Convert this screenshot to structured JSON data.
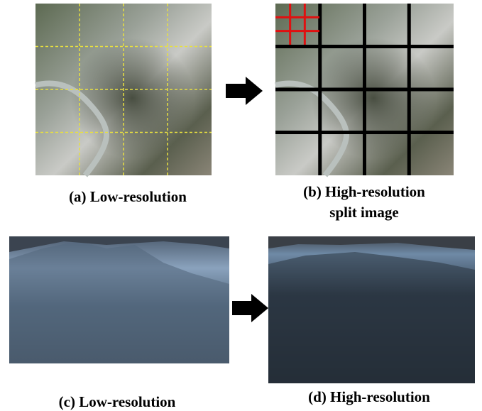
{
  "captions": {
    "a": "(a) Low-resolution",
    "b": [
      "(b) High-resolution",
      "split image"
    ],
    "c": "(c) Low-resolution",
    "d": "(d) High-resolution"
  }
}
